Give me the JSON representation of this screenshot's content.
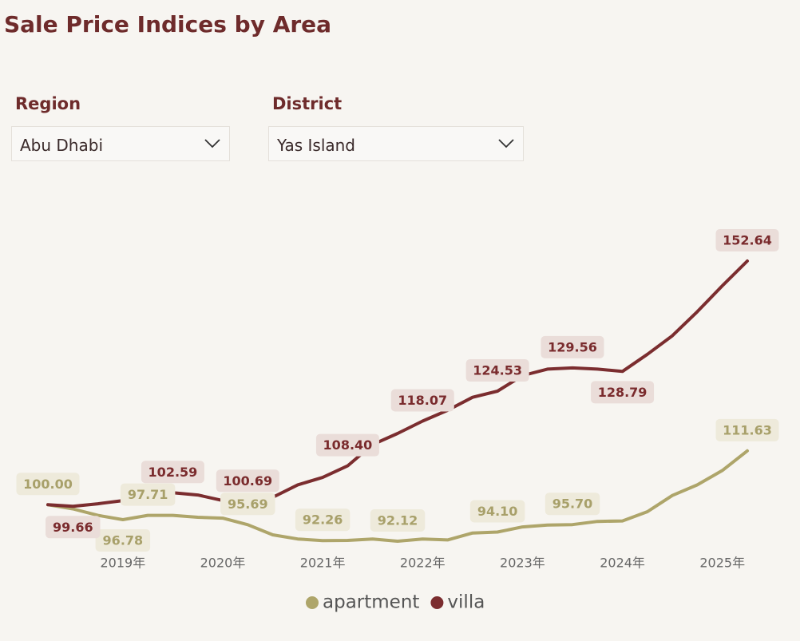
{
  "title": "Sale Price Indices by Area",
  "filters": [
    {
      "label": "Region",
      "value": "Abu Dhabi"
    },
    {
      "label": "District",
      "value": "Yas Island"
    }
  ],
  "chart_data": {
    "type": "line",
    "x": [
      2018.25,
      2018.5,
      2018.75,
      2019,
      2019.25,
      2019.5,
      2019.75,
      2020,
      2020.25,
      2020.5,
      2020.75,
      2021,
      2021.25,
      2021.5,
      2021.75,
      2022,
      2022.25,
      2022.5,
      2022.75,
      2023,
      2023.25,
      2023.5,
      2023.75,
      2024,
      2024.25,
      2024.5,
      2024.75,
      2025,
      2025.25
    ],
    "xticks": [
      {
        "value": 2019,
        "label": "2019年"
      },
      {
        "value": 2020,
        "label": "2020年"
      },
      {
        "value": 2021,
        "label": "2021年"
      },
      {
        "value": 2022,
        "label": "2022年"
      },
      {
        "value": 2023,
        "label": "2023年"
      },
      {
        "value": 2024,
        "label": "2024年"
      },
      {
        "value": 2025,
        "label": "2025年"
      }
    ],
    "series": [
      {
        "name": "apartment",
        "color": "#aea56a",
        "values": [
          100,
          99.1,
          97.7,
          96.78,
          97.71,
          97.7,
          97.3,
          97.1,
          95.69,
          93.5,
          92.6,
          92.26,
          92.3,
          92.6,
          92.12,
          92.6,
          92.4,
          93.9,
          94.1,
          95.2,
          95.6,
          95.7,
          96.4,
          96.5,
          98.5,
          102,
          104.3,
          107.4,
          111.63
        ],
        "value_labels": [
          "100.00",
          null,
          null,
          "96.78",
          "97.71",
          null,
          null,
          null,
          "95.69",
          null,
          null,
          "92.26",
          null,
          null,
          "92.12",
          null,
          null,
          null,
          "94.10",
          null,
          null,
          "95.70",
          null,
          null,
          null,
          null,
          null,
          null,
          "111.63"
        ]
      },
      {
        "name": "villa",
        "color": "#7b2d2f",
        "values": [
          100,
          99.66,
          100.2,
          100.9,
          102,
          102.59,
          102.1,
          100.9,
          100.69,
          101.6,
          104.3,
          105.9,
          108.4,
          113,
          115.4,
          118.07,
          120.4,
          123.2,
          124.53,
          127.9,
          129.3,
          129.56,
          129.3,
          128.79,
          132.5,
          136.5,
          141.7,
          147.3,
          152.64
        ],
        "value_labels": [
          null,
          "99.66",
          null,
          null,
          null,
          "102.59",
          null,
          null,
          "100.69",
          null,
          null,
          null,
          "108.40",
          null,
          null,
          "118.07",
          null,
          null,
          "124.53",
          null,
          null,
          "129.56",
          null,
          "128.79",
          null,
          null,
          null,
          null,
          "152.64"
        ]
      }
    ]
  }
}
